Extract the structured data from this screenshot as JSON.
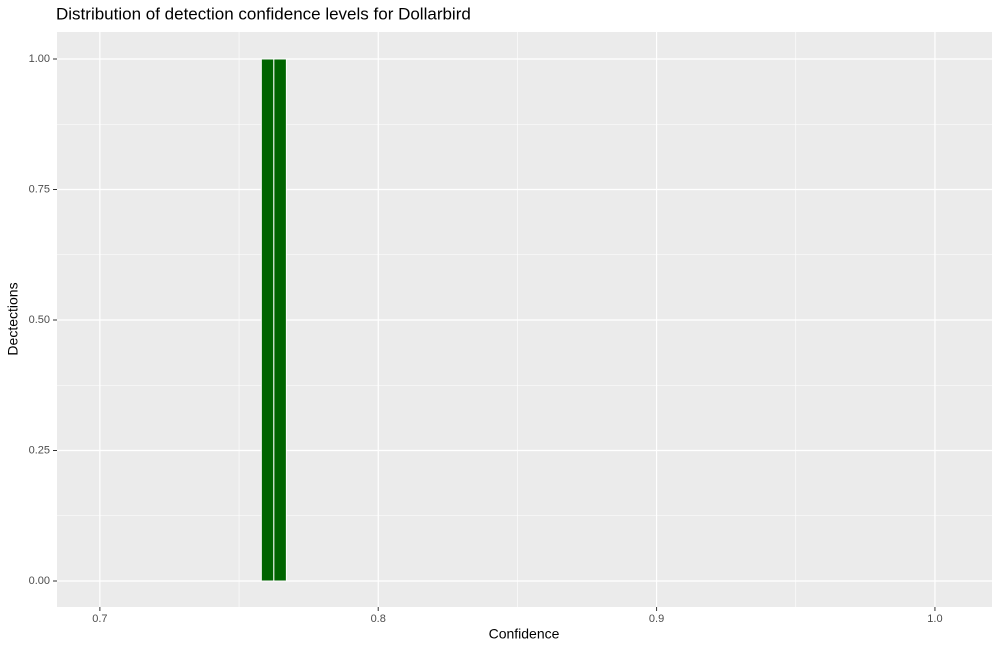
{
  "chart_data": {
    "type": "histogram",
    "title": "Distribution of detection confidence levels for Dollarbird",
    "x_label": "Confidence",
    "y_label": "Dectections",
    "bins": [
      0.758,
      0.7625,
      0.767
    ],
    "values": [
      1,
      1
    ],
    "color": "#006400",
    "edge_color": "#ffffff",
    "xlim": [
      0.6846,
      1.0205
    ],
    "ylim": [
      -0.0498,
      1.0517
    ],
    "xticks": [
      0.7,
      0.8,
      0.9,
      {
        "value": 1,
        "label": "1.0"
      }
    ],
    "yticks": [
      {
        "value": 0,
        "label": "0.00"
      },
      {
        "value": 0.25,
        "label": "0.25"
      },
      {
        "value": 0.5,
        "label": "0.50"
      },
      {
        "value": 0.75,
        "label": "0.75"
      },
      {
        "value": 1,
        "label": "1.00"
      }
    ],
    "x_minor_grid": [
      0.75,
      0.85,
      0.95
    ],
    "y_minor_grid": [
      0.125,
      0.375,
      0.625,
      0.875
    ],
    "grid": true
  }
}
